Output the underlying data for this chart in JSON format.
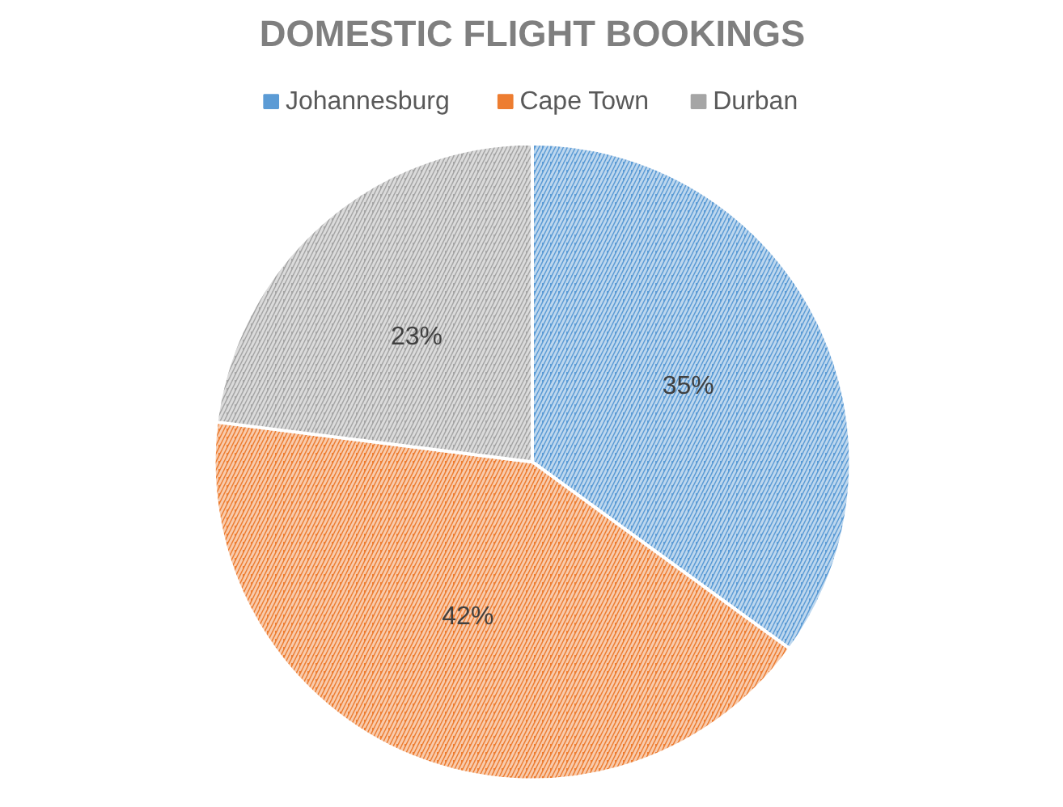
{
  "chart_data": {
    "type": "pie",
    "title": "DOMESTIC FLIGHT BOOKINGS",
    "categories": [
      "Johannesburg",
      "Cape Town",
      "Durban"
    ],
    "values": [
      35,
      42,
      23
    ],
    "value_labels": [
      "35%",
      "42%",
      "23%"
    ],
    "colors": [
      "#5b9bd5",
      "#ed7d31",
      "#a5a5a5"
    ],
    "legend": "top"
  }
}
